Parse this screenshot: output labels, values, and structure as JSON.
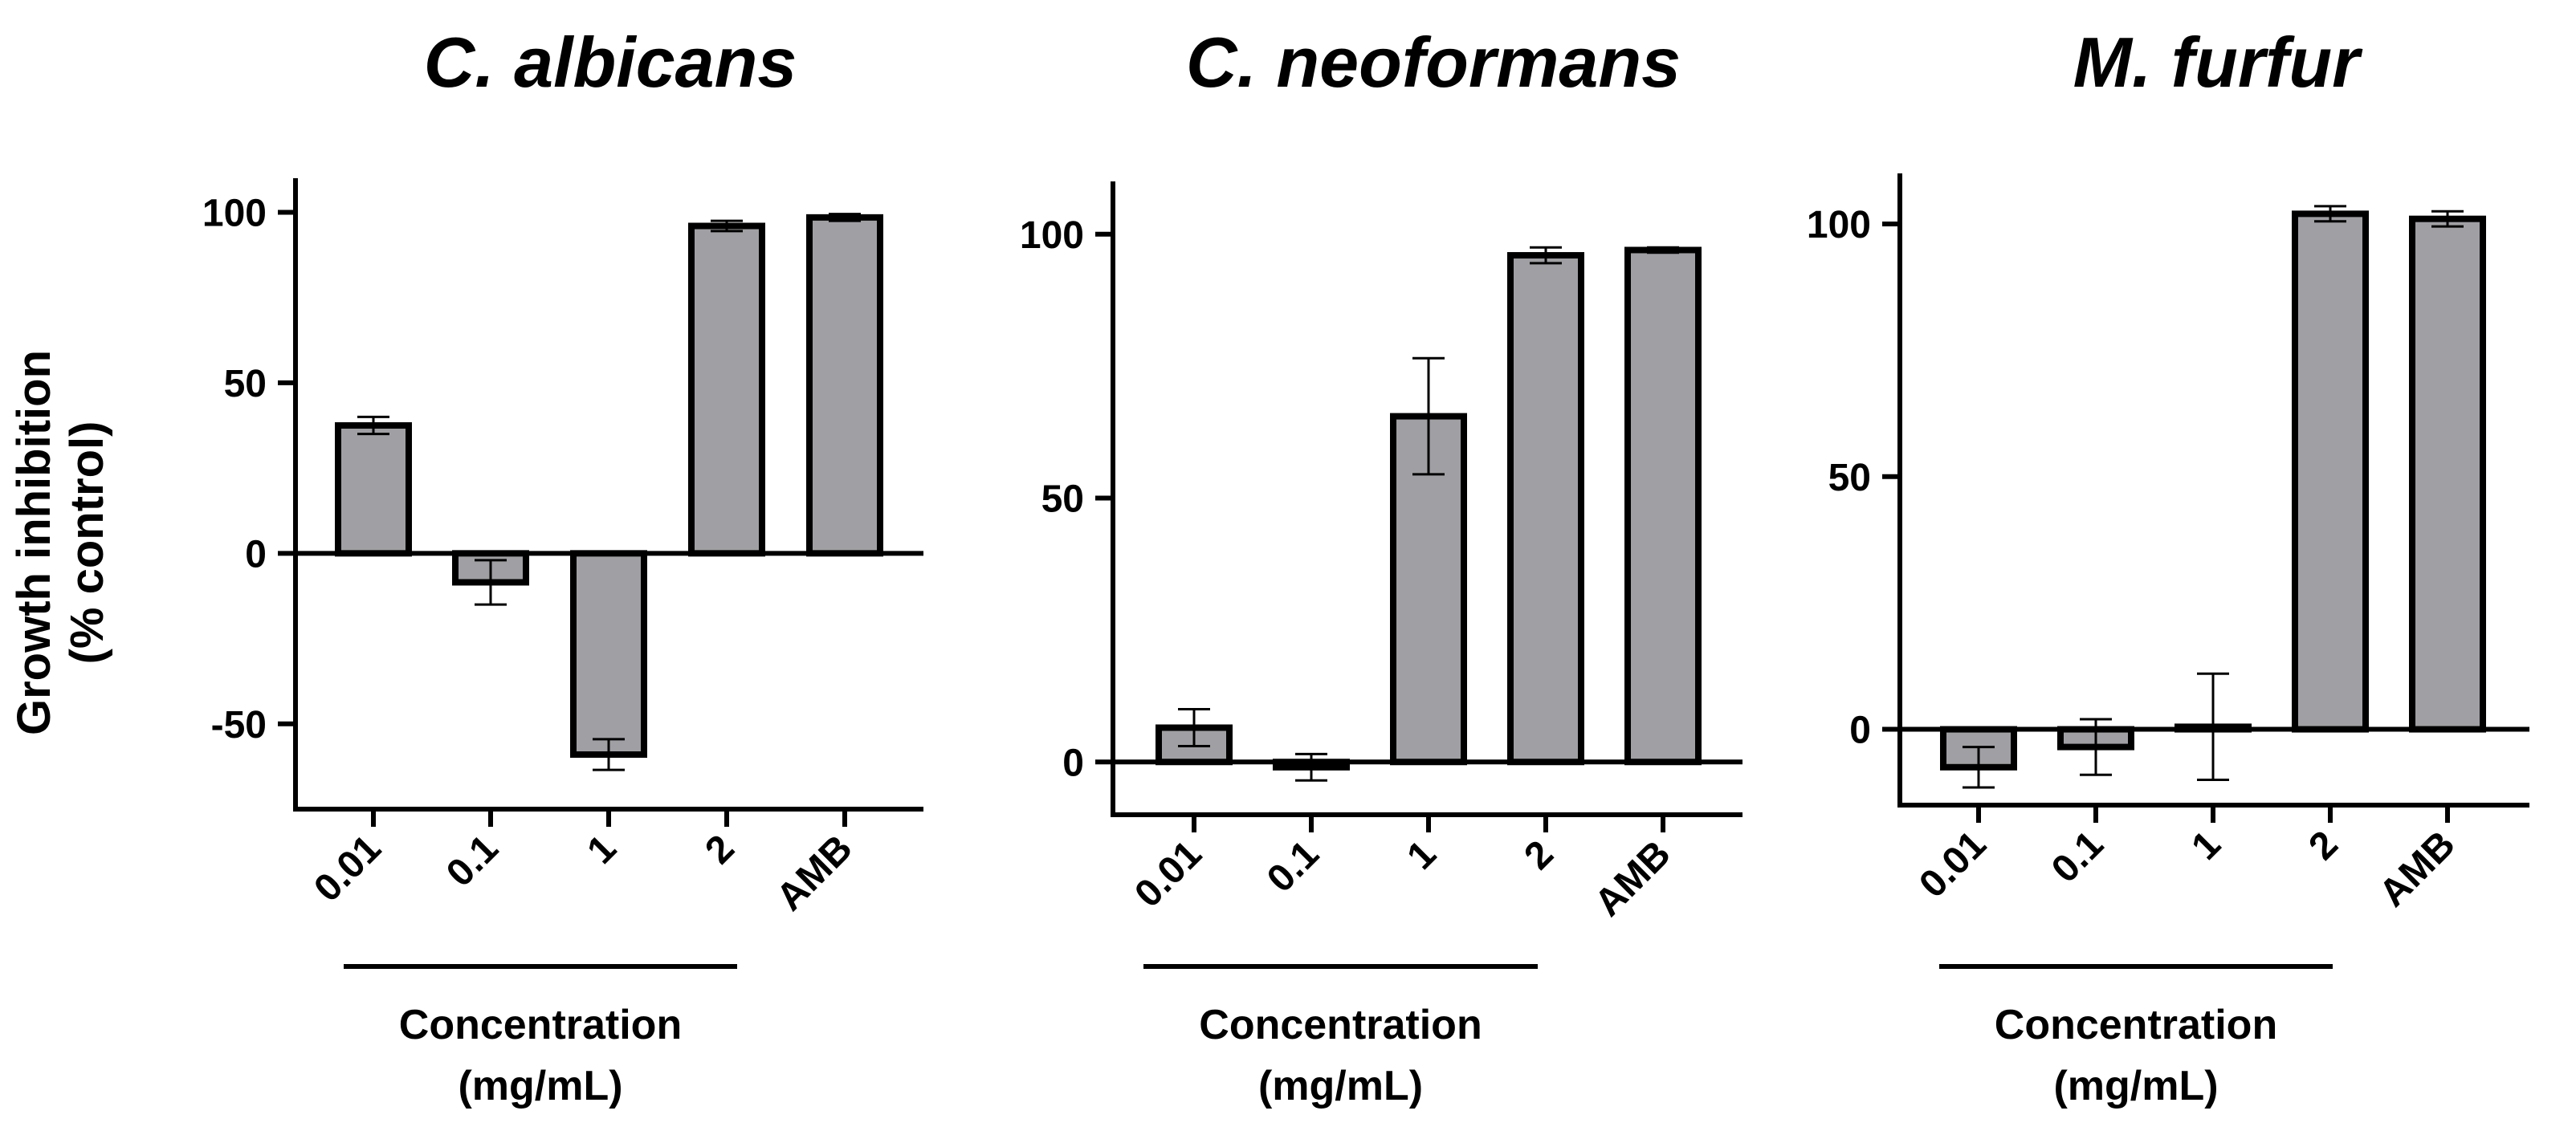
{
  "figure": {
    "ylabel_lines": [
      "Growth inhibition",
      "(% control)"
    ],
    "xlabel_lines": [
      "Concentration",
      "(mg/mL)"
    ],
    "bar_color": "#a0a0a4",
    "bar_edge_color": "#000000"
  },
  "chart_data": [
    {
      "type": "bar",
      "title": "C. albicans",
      "categories": [
        "0.01",
        "0.1",
        "1",
        "2",
        "AMB"
      ],
      "values": [
        37.5,
        -8.5,
        -59,
        96,
        98.5
      ],
      "errors": [
        2.5,
        6.5,
        4.5,
        1.5,
        1
      ],
      "yticks": [
        -50,
        0,
        50,
        100
      ],
      "ylim": [
        -75,
        110
      ],
      "xlabel": "Concentration (mg/mL)",
      "ylabel": "Growth inhibition (% control)"
    },
    {
      "type": "bar",
      "title": "C. neoformans",
      "categories": [
        "0.01",
        "0.1",
        "1",
        "2",
        "AMB"
      ],
      "values": [
        6.5,
        -1,
        65.5,
        96,
        97
      ],
      "errors": [
        3.5,
        2.5,
        11,
        1.5,
        0.5
      ],
      "yticks": [
        0,
        50,
        100
      ],
      "ylim": [
        -10,
        110
      ],
      "xlabel": "Concentration (mg/mL)",
      "ylabel": "Growth inhibition (% control)"
    },
    {
      "type": "bar",
      "title": "M. furfur",
      "categories": [
        "0.01",
        "0.1",
        "1",
        "2",
        "AMB"
      ],
      "values": [
        -7.5,
        -3.5,
        0.5,
        102,
        101
      ],
      "errors": [
        4,
        5.5,
        10.5,
        1.5,
        1.5
      ],
      "yticks": [
        0,
        50,
        100
      ],
      "ylim": [
        -15,
        110
      ],
      "xlabel": "Concentration (mg/mL)",
      "ylabel": "Growth inhibition (% control)"
    }
  ]
}
